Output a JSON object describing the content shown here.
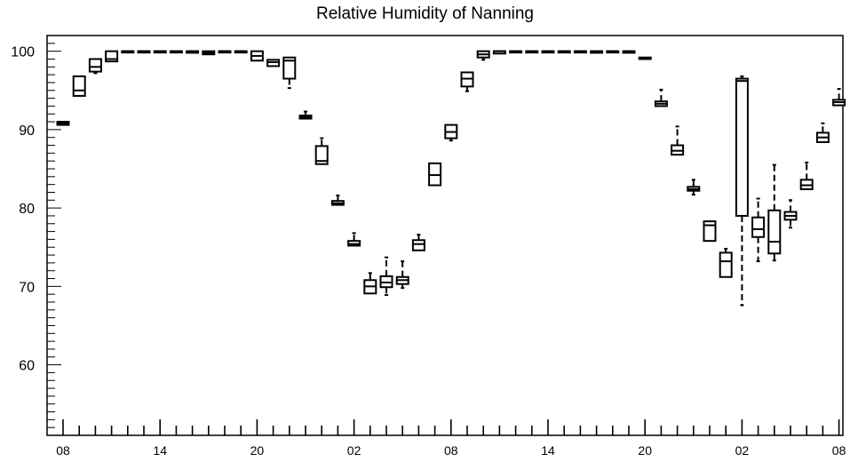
{
  "chart_data": {
    "type": "box",
    "title": "Relative Humidity of Nanning",
    "xlabel": "",
    "ylabel": "",
    "ylim": [
      51,
      102
    ],
    "y_ticks": [
      60,
      70,
      80,
      90,
      100
    ],
    "x_tick_labels": [
      "08",
      "14",
      "20",
      "02",
      "08",
      "14",
      "20",
      "02",
      "08"
    ],
    "grid": false,
    "x_range": [
      0,
      49
    ],
    "boxes": [
      {
        "x": 0,
        "whislo": 90.6,
        "q1": 90.6,
        "med": 90.8,
        "q3": 91.0,
        "whishi": 91.0
      },
      {
        "x": 1,
        "whislo": 94.3,
        "q1": 94.3,
        "med": 95.0,
        "q3": 96.8,
        "whishi": 96.8
      },
      {
        "x": 2,
        "whislo": 97.2,
        "q1": 97.4,
        "med": 98.0,
        "q3": 99.0,
        "whishi": 99.0
      },
      {
        "x": 3,
        "whislo": 98.7,
        "q1": 98.7,
        "med": 99.0,
        "q3": 100.0,
        "whishi": 100.0
      },
      {
        "x": 4,
        "whislo": 100.0,
        "q1": 100.0,
        "med": 100.0,
        "q3": 100.0,
        "whishi": 100.0
      },
      {
        "x": 5,
        "whislo": 100.0,
        "q1": 100.0,
        "med": 100.0,
        "q3": 100.0,
        "whishi": 100.0
      },
      {
        "x": 6,
        "whislo": 100.0,
        "q1": 100.0,
        "med": 100.0,
        "q3": 100.0,
        "whishi": 100.0
      },
      {
        "x": 7,
        "whislo": 100.0,
        "q1": 100.0,
        "med": 100.0,
        "q3": 100.0,
        "whishi": 100.0
      },
      {
        "x": 8,
        "whislo": 99.8,
        "q1": 99.8,
        "med": 100.0,
        "q3": 100.0,
        "whishi": 100.0
      },
      {
        "x": 9,
        "whislo": 99.6,
        "q1": 99.6,
        "med": 99.8,
        "q3": 100.0,
        "whishi": 100.0
      },
      {
        "x": 10,
        "whislo": 100.0,
        "q1": 100.0,
        "med": 100.0,
        "q3": 100.0,
        "whishi": 100.0
      },
      {
        "x": 11,
        "whislo": 100.0,
        "q1": 100.0,
        "med": 100.0,
        "q3": 100.0,
        "whishi": 100.0
      },
      {
        "x": 12,
        "whislo": 98.8,
        "q1": 98.8,
        "med": 99.4,
        "q3": 100.0,
        "whishi": 100.0
      },
      {
        "x": 13,
        "whislo": 98.1,
        "q1": 98.1,
        "med": 98.6,
        "q3": 98.9,
        "whishi": 98.9
      },
      {
        "x": 14,
        "whislo": 95.3,
        "q1": 96.5,
        "med": 98.8,
        "q3": 99.2,
        "whishi": 99.2
      },
      {
        "x": 15,
        "whislo": 91.4,
        "q1": 91.4,
        "med": 91.6,
        "q3": 91.8,
        "whishi": 92.3
      },
      {
        "x": 16,
        "whislo": 85.6,
        "q1": 85.6,
        "med": 86.0,
        "q3": 87.9,
        "whishi": 88.9
      },
      {
        "x": 17,
        "whislo": 80.4,
        "q1": 80.4,
        "med": 80.6,
        "q3": 80.9,
        "whishi": 81.6
      },
      {
        "x": 18,
        "whislo": 75.2,
        "q1": 75.2,
        "med": 75.4,
        "q3": 75.8,
        "whishi": 76.8
      },
      {
        "x": 19,
        "whislo": 69.1,
        "q1": 69.1,
        "med": 70.0,
        "q3": 70.8,
        "whishi": 71.7
      },
      {
        "x": 20,
        "whislo": 68.9,
        "q1": 69.9,
        "med": 70.5,
        "q3": 71.3,
        "whishi": 73.7
      },
      {
        "x": 21,
        "whislo": 69.8,
        "q1": 70.3,
        "med": 70.8,
        "q3": 71.2,
        "whishi": 73.2
      },
      {
        "x": 22,
        "whislo": 74.6,
        "q1": 74.6,
        "med": 75.4,
        "q3": 75.9,
        "whishi": 76.6
      },
      {
        "x": 23,
        "whislo": 82.9,
        "q1": 82.9,
        "med": 84.2,
        "q3": 85.7,
        "whishi": 85.7
      },
      {
        "x": 24,
        "whislo": 88.6,
        "q1": 88.9,
        "med": 89.7,
        "q3": 90.6,
        "whishi": 90.6
      },
      {
        "x": 25,
        "whislo": 94.9,
        "q1": 95.5,
        "med": 96.5,
        "q3": 97.3,
        "whishi": 97.3
      },
      {
        "x": 26,
        "whislo": 98.9,
        "q1": 99.2,
        "med": 99.6,
        "q3": 100.0,
        "whishi": 100.0
      },
      {
        "x": 27,
        "whislo": 99.7,
        "q1": 99.7,
        "med": 100.0,
        "q3": 100.0,
        "whishi": 100.0
      },
      {
        "x": 28,
        "whislo": 100.0,
        "q1": 100.0,
        "med": 100.0,
        "q3": 100.0,
        "whishi": 100.0
      },
      {
        "x": 29,
        "whislo": 100.0,
        "q1": 100.0,
        "med": 100.0,
        "q3": 100.0,
        "whishi": 100.0
      },
      {
        "x": 30,
        "whislo": 100.0,
        "q1": 100.0,
        "med": 100.0,
        "q3": 100.0,
        "whishi": 100.0
      },
      {
        "x": 31,
        "whislo": 100.0,
        "q1": 100.0,
        "med": 100.0,
        "q3": 100.0,
        "whishi": 100.0
      },
      {
        "x": 32,
        "whislo": 100.0,
        "q1": 100.0,
        "med": 100.0,
        "q3": 100.0,
        "whishi": 100.0
      },
      {
        "x": 33,
        "whislo": 99.8,
        "q1": 99.8,
        "med": 100.0,
        "q3": 100.0,
        "whishi": 100.0
      },
      {
        "x": 34,
        "whislo": 100.0,
        "q1": 100.0,
        "med": 100.0,
        "q3": 100.0,
        "whishi": 100.0
      },
      {
        "x": 35,
        "whislo": 99.8,
        "q1": 99.8,
        "med": 100.0,
        "q3": 100.0,
        "whishi": 100.0
      },
      {
        "x": 36,
        "whislo": 99.0,
        "q1": 99.0,
        "med": 99.1,
        "q3": 99.2,
        "whishi": 99.2
      },
      {
        "x": 37,
        "whislo": 93.0,
        "q1": 93.0,
        "med": 93.3,
        "q3": 93.6,
        "whishi": 95.1
      },
      {
        "x": 38,
        "whislo": 86.8,
        "q1": 86.8,
        "med": 87.3,
        "q3": 88.0,
        "whishi": 90.4
      },
      {
        "x": 39,
        "whislo": 81.7,
        "q1": 82.2,
        "med": 82.4,
        "q3": 82.7,
        "whishi": 83.6
      },
      {
        "x": 40,
        "whislo": 75.8,
        "q1": 75.8,
        "med": 77.8,
        "q3": 78.3,
        "whishi": 78.3
      },
      {
        "x": 41,
        "whislo": 71.2,
        "q1": 71.2,
        "med": 73.2,
        "q3": 74.3,
        "whishi": 74.8
      },
      {
        "x": 42,
        "whislo": 67.6,
        "q1": 79.0,
        "med": 96.2,
        "q3": 96.5,
        "whishi": 96.8
      },
      {
        "x": 43,
        "whislo": 73.2,
        "q1": 76.3,
        "med": 77.3,
        "q3": 78.8,
        "whishi": 81.2
      },
      {
        "x": 44,
        "whislo": 73.3,
        "q1": 74.2,
        "med": 75.7,
        "q3": 79.7,
        "whishi": 85.5
      },
      {
        "x": 45,
        "whislo": 77.5,
        "q1": 78.5,
        "med": 79.0,
        "q3": 79.5,
        "whishi": 81.0
      },
      {
        "x": 46,
        "whislo": 82.4,
        "q1": 82.4,
        "med": 82.9,
        "q3": 83.6,
        "whishi": 85.8
      },
      {
        "x": 47,
        "whislo": 88.4,
        "q1": 88.4,
        "med": 89.0,
        "q3": 89.6,
        "whishi": 90.8
      },
      {
        "x": 48,
        "whislo": 93.1,
        "q1": 93.1,
        "med": 93.5,
        "q3": 93.8,
        "whishi": 95.2
      }
    ]
  }
}
